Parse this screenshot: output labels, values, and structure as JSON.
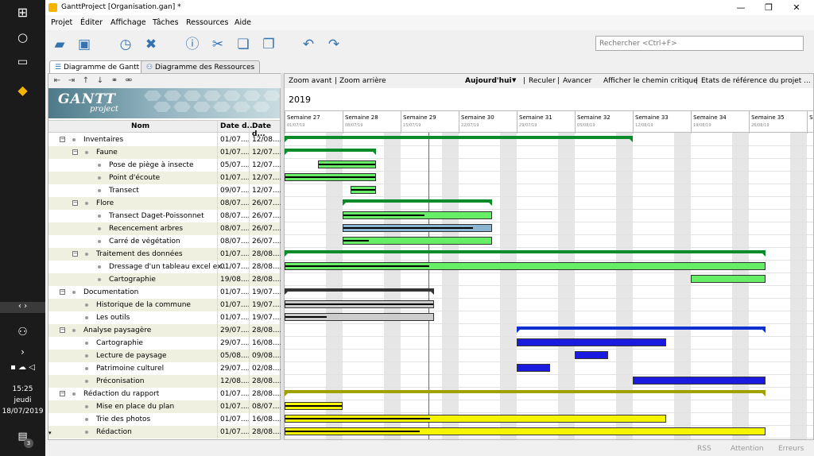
{
  "taskbar": {
    "time": "15:25",
    "day": "jeudi",
    "date": "18/07/2019",
    "notif_count": "3"
  },
  "window": {
    "title": "GanttProject [Organisation.gan] *"
  },
  "menu": [
    "Projet",
    "Éditer",
    "Affichage",
    "Tâches",
    "Ressources",
    "Aide"
  ],
  "search": {
    "placeholder": "Rechercher <Ctrl+F>"
  },
  "tabs": {
    "gantt": "Diagramme de Gantt",
    "resources": "Diagramme des Ressources"
  },
  "logo": {
    "main": "GANTT",
    "sub": "project"
  },
  "columns": {
    "name": "Nom",
    "start": "Date d...",
    "end": "Date d..."
  },
  "tasks": [
    {
      "name": "Inventaires",
      "start": "01/07....",
      "end": "12/08....",
      "level": 0,
      "toggle": "−",
      "color": "#0a8c2a",
      "summary": true,
      "s": 0,
      "e": 42,
      "p": 0
    },
    {
      "name": "Faune",
      "start": "01/07....",
      "end": "12/07....",
      "level": 1,
      "toggle": "−",
      "color": "#0a8c2a",
      "summary": true,
      "s": 0,
      "e": 11,
      "p": 0
    },
    {
      "name": "Pose de piège à insecte",
      "start": "05/07....",
      "end": "12/07....",
      "level": 2,
      "color": "#66ee66",
      "s": 4,
      "e": 11,
      "p": 1
    },
    {
      "name": "Point d'écoute",
      "start": "01/07....",
      "end": "12/07....",
      "level": 2,
      "color": "#66ee66",
      "s": 0,
      "e": 11,
      "p": 1
    },
    {
      "name": "Transect",
      "start": "09/07....",
      "end": "12/07....",
      "level": 2,
      "color": "#66ee66",
      "s": 8,
      "e": 11,
      "p": 1
    },
    {
      "name": "Flore",
      "start": "08/07....",
      "end": "26/07....",
      "level": 1,
      "toggle": "−",
      "color": "#0a8c2a",
      "summary": true,
      "s": 7,
      "e": 25,
      "p": 0
    },
    {
      "name": "Transect Daget-Poissonnet",
      "start": "08/07....",
      "end": "26/07....",
      "level": 2,
      "color": "#66ee66",
      "s": 7,
      "e": 25,
      "p": 0.55
    },
    {
      "name": "Recencement arbres",
      "start": "08/07....",
      "end": "26/07....",
      "level": 2,
      "color": "#8ab4d0",
      "s": 7,
      "e": 25,
      "p": 0.88
    },
    {
      "name": "Carré de végétation",
      "start": "08/07....",
      "end": "26/07....",
      "level": 2,
      "color": "#66ee66",
      "s": 7,
      "e": 25,
      "p": 0.17
    },
    {
      "name": "Traitement des données",
      "start": "01/07....",
      "end": "28/08....",
      "level": 1,
      "toggle": "−",
      "color": "#0a8c2a",
      "summary": true,
      "s": 0,
      "e": 58,
      "p": 0
    },
    {
      "name": "Dressage d'un tableau excel ex...",
      "start": "01/07....",
      "end": "28/08....",
      "level": 2,
      "color": "#66ee66",
      "s": 0,
      "e": 58,
      "p": 0.3
    },
    {
      "name": "Cartographie",
      "start": "19/08....",
      "end": "28/08....",
      "level": 2,
      "color": "#66ee66",
      "s": 49,
      "e": 58,
      "p": 0
    },
    {
      "name": "Documentation",
      "start": "01/07....",
      "end": "19/07....",
      "level": 0,
      "toggle": "−",
      "color": "#333333",
      "summary": true,
      "s": 0,
      "e": 18,
      "p": 0
    },
    {
      "name": "Historique de la commune",
      "start": "01/07....",
      "end": "19/07....",
      "level": 1,
      "color": "#cccccc",
      "s": 0,
      "e": 18,
      "p": 1
    },
    {
      "name": "Les outils",
      "start": "01/07....",
      "end": "19/07....",
      "level": 1,
      "color": "#cccccc",
      "s": 0,
      "e": 18,
      "p": 0.28
    },
    {
      "name": "Analyse paysagère",
      "start": "29/07....",
      "end": "28/08....",
      "level": 0,
      "toggle": "−",
      "color": "#1030d0",
      "summary": true,
      "s": 28,
      "e": 58,
      "p": 0
    },
    {
      "name": "Cartographie",
      "start": "29/07....",
      "end": "16/08....",
      "level": 1,
      "color": "#1a1ae0",
      "s": 28,
      "e": 46,
      "p": 0
    },
    {
      "name": "Lecture de paysage",
      "start": "05/08....",
      "end": "09/08....",
      "level": 1,
      "color": "#1a1ae0",
      "s": 35,
      "e": 39,
      "p": 0
    },
    {
      "name": "Patrimoine culturel",
      "start": "29/07....",
      "end": "02/08....",
      "level": 1,
      "color": "#1a1ae0",
      "s": 28,
      "e": 32,
      "p": 0
    },
    {
      "name": "Préconisation",
      "start": "12/08....",
      "end": "28/08....",
      "level": 1,
      "color": "#1a1ae0",
      "s": 42,
      "e": 58,
      "p": 0
    },
    {
      "name": "Rédaction du rapport",
      "start": "01/07....",
      "end": "28/08....",
      "level": 0,
      "toggle": "−",
      "color": "#a0a000",
      "summary": true,
      "s": 0,
      "e": 58,
      "p": 0
    },
    {
      "name": "Mise en place du plan",
      "start": "01/07....",
      "end": "08/07....",
      "level": 1,
      "color": "#f5f500",
      "s": 0,
      "e": 7,
      "p": 1
    },
    {
      "name": "Trie des photos",
      "start": "01/07....",
      "end": "16/08....",
      "level": 1,
      "color": "#f5f500",
      "s": 0,
      "e": 46,
      "p": 0.38
    },
    {
      "name": "Rédaction",
      "start": "01/07....",
      "end": "28/08....",
      "level": 1,
      "color": "#f5f500",
      "s": 0,
      "e": 58,
      "p": 0.28
    }
  ],
  "chart_toolbar": {
    "zoom_in": "Zoom avant",
    "zoom_out": "Zoom arrière",
    "today": "Aujourd'hui",
    "back": "Reculer",
    "forward": "Avancer",
    "critical": "Afficher le chemin critique",
    "baseline": "Etats de référence du projet ..."
  },
  "chart": {
    "year": "2019",
    "today_day": 17,
    "weeks": [
      {
        "label": "Semaine 27",
        "date": "01/07/19"
      },
      {
        "label": "Semaine 28",
        "date": "08/07/19"
      },
      {
        "label": "Semaine 29",
        "date": "15/07/19"
      },
      {
        "label": "Semaine 30",
        "date": "22/07/19"
      },
      {
        "label": "Semaine 31",
        "date": "29/07/19"
      },
      {
        "label": "Semaine 32",
        "date": "05/08/19"
      },
      {
        "label": "Semaine 33",
        "date": "12/08/19"
      },
      {
        "label": "Semaine 34",
        "date": "19/08/19"
      },
      {
        "label": "Semaine 35",
        "date": "26/08/19"
      },
      {
        "label": "S...",
        "date": ""
      }
    ]
  },
  "status": {
    "rss": "RSS",
    "warning": "Attention",
    "errors": "Erreurs"
  }
}
